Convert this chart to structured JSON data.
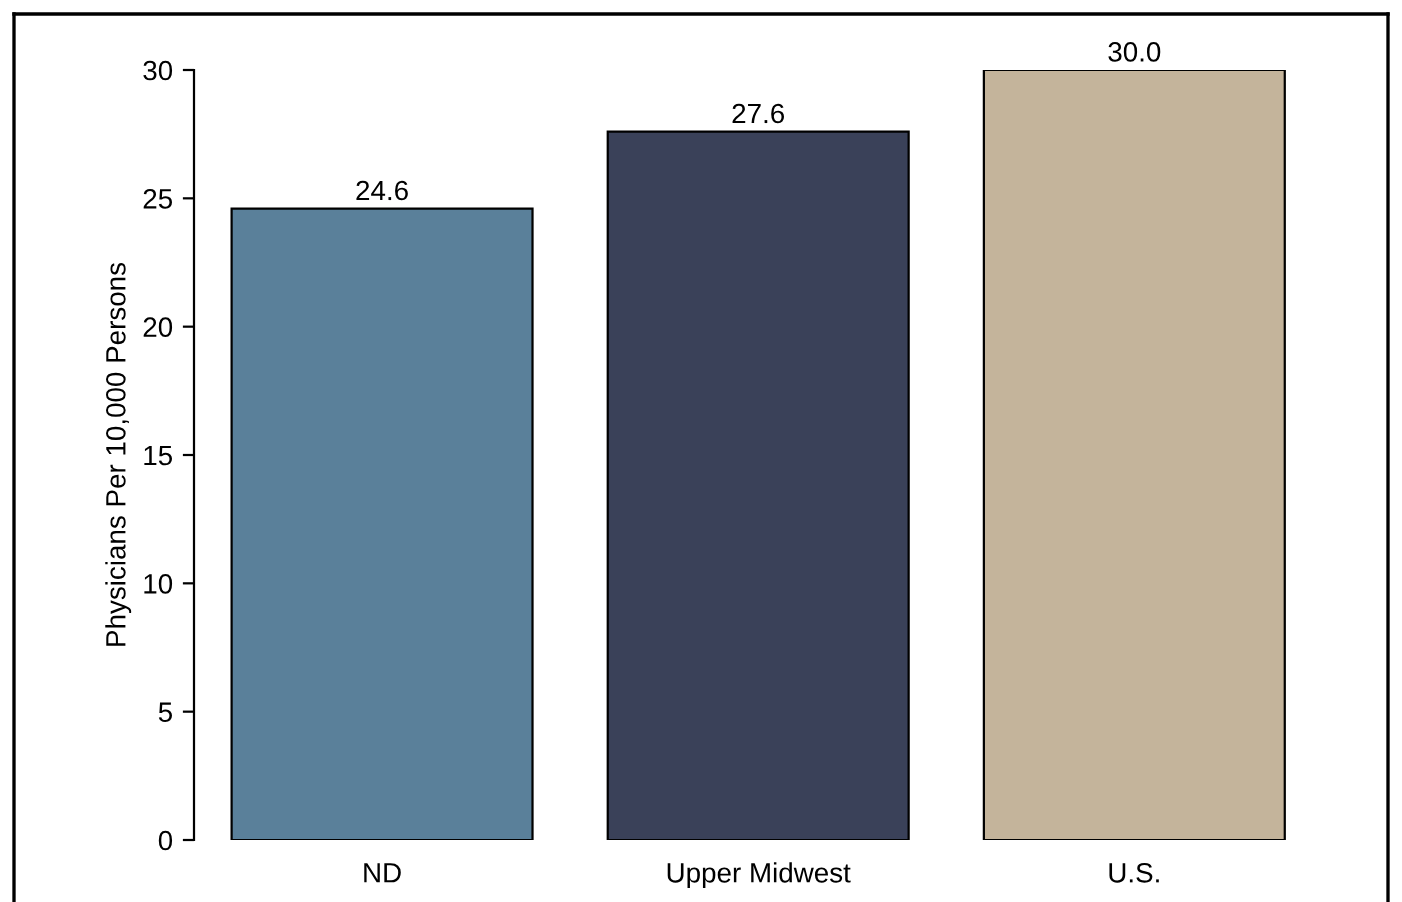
{
  "chart_data": {
    "type": "bar",
    "ylabel": "Physicians Per 10,000 Persons",
    "categories": [
      "ND",
      "Upper Midwest",
      "U.S."
    ],
    "values": [
      24.6,
      27.6,
      30.0
    ],
    "colors": [
      "#5a809a",
      "#3a4159",
      "#c4b49b"
    ],
    "value_labels": [
      "24.6",
      "27.6",
      "30.0"
    ],
    "ylim": [
      0,
      30
    ],
    "yticks": [
      0,
      5,
      10,
      15,
      20,
      25,
      30
    ],
    "grid": false,
    "legend": false
  }
}
